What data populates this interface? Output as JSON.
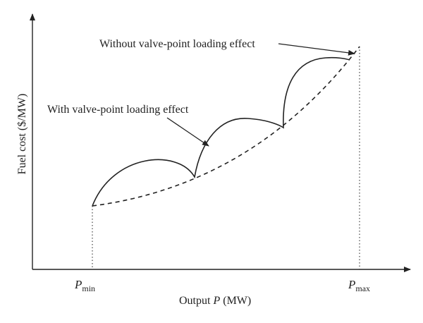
{
  "labels": {
    "y_axis": "Fuel cost ($/MW)",
    "x_axis_prefix": "Output ",
    "x_axis_var": "P",
    "x_axis_unit": " (MW)",
    "pmin_main": "P",
    "pmin_sub": "min",
    "pmax_main": "P",
    "pmax_sub": "max",
    "without_effect": "Without valve-point loading effect",
    "with_effect": "With valve-point loading effect"
  },
  "legend": {
    "with_effect_line": "solid",
    "without_effect_line": "dashed"
  }
}
